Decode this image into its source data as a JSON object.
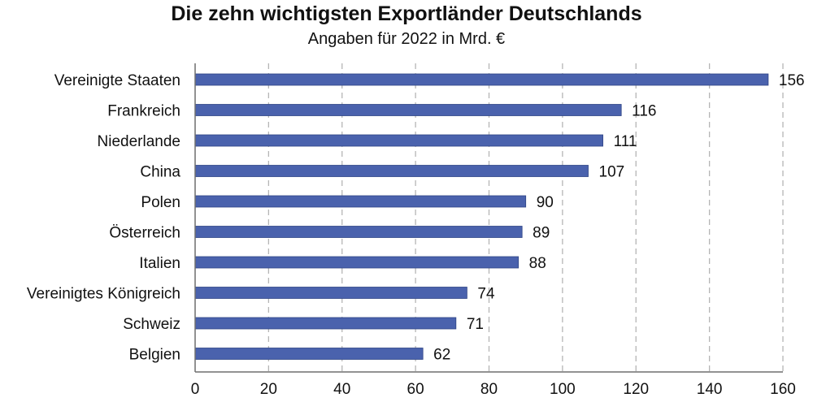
{
  "chart_data": {
    "type": "bar",
    "orientation": "horizontal",
    "title": "Die zehn wichtigsten Exportländer Deutschlands",
    "subtitle": "Angaben für 2022 in Mrd. €",
    "categories": [
      "Vereinigte Staaten",
      "Frankreich",
      "Niederlande",
      "China",
      "Polen",
      "Österreich",
      "Italien",
      "Vereinigtes Königreich",
      "Schweiz",
      "Belgien"
    ],
    "values": [
      156,
      116,
      111,
      107,
      90,
      89,
      88,
      74,
      71,
      62
    ],
    "data_labels": [
      "156",
      "116",
      "111",
      "107",
      "90",
      "89",
      "88",
      "74",
      "71",
      "62"
    ],
    "xlim": [
      0,
      160
    ],
    "xticks": [
      0,
      20,
      40,
      60,
      80,
      100,
      120,
      140,
      160
    ],
    "xtick_labels": [
      "0",
      "20",
      "40",
      "60",
      "80",
      "100",
      "120",
      "140",
      "160"
    ],
    "xlabel": "",
    "ylabel": "",
    "grid": "vertical dashed",
    "legend": "none",
    "colors": {
      "bar": "#4a62ad",
      "bar_edge": "#2f4585",
      "grid": "#b5b5b5",
      "axis": "#6f6f6f",
      "text": "#111111"
    }
  }
}
